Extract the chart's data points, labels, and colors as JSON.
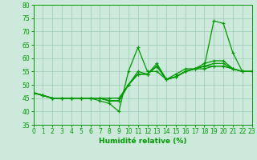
{
  "xlabel": "Humidité relative (%)",
  "xlim": [
    0,
    23
  ],
  "ylim": [
    35,
    80
  ],
  "xticks": [
    0,
    1,
    2,
    3,
    4,
    5,
    6,
    7,
    8,
    9,
    10,
    11,
    12,
    13,
    14,
    15,
    16,
    17,
    18,
    19,
    20,
    21,
    22,
    23
  ],
  "yticks": [
    35,
    40,
    45,
    50,
    55,
    60,
    65,
    70,
    75,
    80
  ],
  "background_color": "#cce9dc",
  "grid_color": "#99ccb5",
  "line_color": "#009900",
  "line_width": 0.9,
  "marker": "+",
  "marker_size": 3,
  "marker_edge_width": 0.8,
  "tick_fontsize": 5.5,
  "xlabel_fontsize": 6.5,
  "series": [
    {
      "x": [
        0,
        1,
        2,
        3,
        4,
        5,
        6,
        7,
        8,
        9,
        10,
        11,
        12,
        13,
        14,
        15,
        16,
        17,
        18,
        19,
        20,
        21,
        22
      ],
      "y": [
        47,
        46,
        45,
        45,
        45,
        45,
        45,
        44,
        43,
        40,
        55,
        64,
        55,
        55,
        52,
        54,
        56,
        56,
        57,
        74,
        73,
        62,
        55
      ]
    },
    {
      "x": [
        0,
        1,
        2,
        3,
        4,
        5,
        6,
        7,
        8,
        9,
        10,
        11,
        12,
        13,
        14,
        15,
        16,
        17,
        18,
        19,
        20,
        21,
        22,
        23
      ],
      "y": [
        47,
        46,
        45,
        45,
        45,
        45,
        45,
        45,
        45,
        45,
        50,
        54,
        54,
        58,
        52,
        53,
        55,
        56,
        58,
        59,
        59,
        56,
        55,
        55
      ]
    },
    {
      "x": [
        0,
        1,
        2,
        3,
        4,
        5,
        6,
        7,
        8,
        9,
        10,
        11,
        12,
        13,
        14,
        15,
        16,
        17,
        18,
        19,
        20,
        21,
        22,
        23
      ],
      "y": [
        47,
        46,
        45,
        45,
        45,
        45,
        45,
        45,
        44,
        44,
        50,
        54,
        54,
        57,
        52,
        53,
        55,
        56,
        57,
        58,
        58,
        56,
        55,
        55
      ]
    },
    {
      "x": [
        0,
        1,
        2,
        3,
        4,
        5,
        6,
        7,
        8,
        9,
        10,
        11,
        12,
        13,
        14,
        15,
        16,
        17,
        18,
        19,
        20,
        21,
        22,
        23
      ],
      "y": [
        47,
        46,
        45,
        45,
        45,
        45,
        45,
        45,
        44,
        44,
        50,
        54,
        54,
        57,
        52,
        53,
        55,
        56,
        57,
        57,
        57,
        56,
        55,
        55
      ]
    },
    {
      "x": [
        0,
        1,
        2,
        3,
        4,
        5,
        6,
        7,
        8,
        9,
        10,
        11,
        12,
        13,
        14,
        15,
        16,
        17,
        18,
        19,
        20,
        21,
        22,
        23
      ],
      "y": [
        47,
        46,
        45,
        45,
        45,
        45,
        45,
        45,
        44,
        44,
        50,
        55,
        54,
        57,
        52,
        53,
        55,
        56,
        56,
        57,
        57,
        56,
        55,
        55
      ]
    }
  ]
}
